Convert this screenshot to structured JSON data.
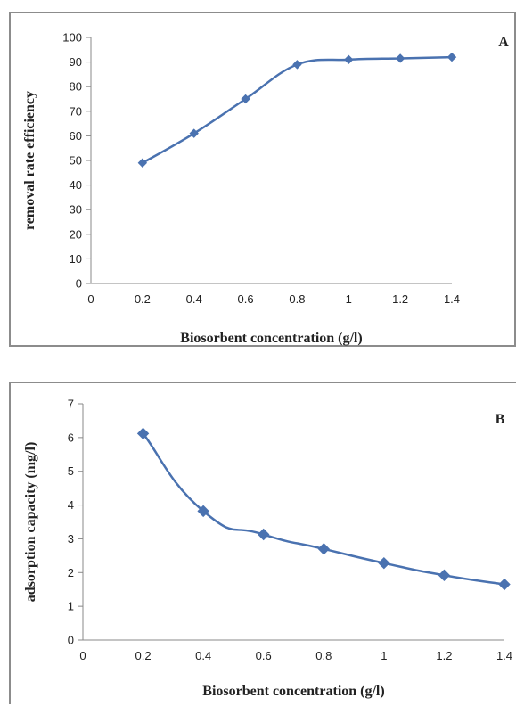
{
  "chart_data": [
    {
      "type": "line",
      "panel_label": "A",
      "x": [
        0.2,
        0.4,
        0.6,
        0.8,
        1,
        1.2,
        1.4
      ],
      "series": [
        {
          "values": [
            49,
            61,
            75,
            89,
            91,
            91.5,
            92
          ]
        }
      ],
      "xlabel": "Biosorbent concentration (g/l)",
      "ylabel": "removal rate efficiency",
      "xlim": [
        0,
        1.4
      ],
      "ylim": [
        0,
        100
      ],
      "xticks": [
        "0",
        "0.2",
        "0.4",
        "0.6",
        "0.8",
        "1",
        "1.2",
        "1.4"
      ],
      "yticks": [
        "0",
        "10",
        "20",
        "30",
        "40",
        "50",
        "60",
        "70",
        "80",
        "90",
        "100"
      ],
      "grid": false,
      "marker": "diamond",
      "color": "#4a72b0"
    },
    {
      "type": "line",
      "panel_label": "B",
      "x": [
        0.2,
        0.4,
        0.6,
        0.8,
        1,
        1.2,
        1.4
      ],
      "series": [
        {
          "values": [
            6.12,
            3.82,
            3.13,
            2.7,
            2.28,
            1.92,
            1.65
          ]
        }
      ],
      "xlabel": "Biosorbent concentration (g/l)",
      "ylabel": "adsorption capacity (mg/l)",
      "xlim": [
        0,
        1.4
      ],
      "ylim": [
        0,
        7
      ],
      "xticks": [
        "0",
        "0.2",
        "0.4",
        "0.6",
        "0.8",
        "1",
        "1.2",
        "1.4"
      ],
      "yticks": [
        "0",
        "1",
        "2",
        "3",
        "4",
        "5",
        "6",
        "7"
      ],
      "grid": false,
      "marker": "diamond",
      "color": "#4a72b0"
    }
  ]
}
